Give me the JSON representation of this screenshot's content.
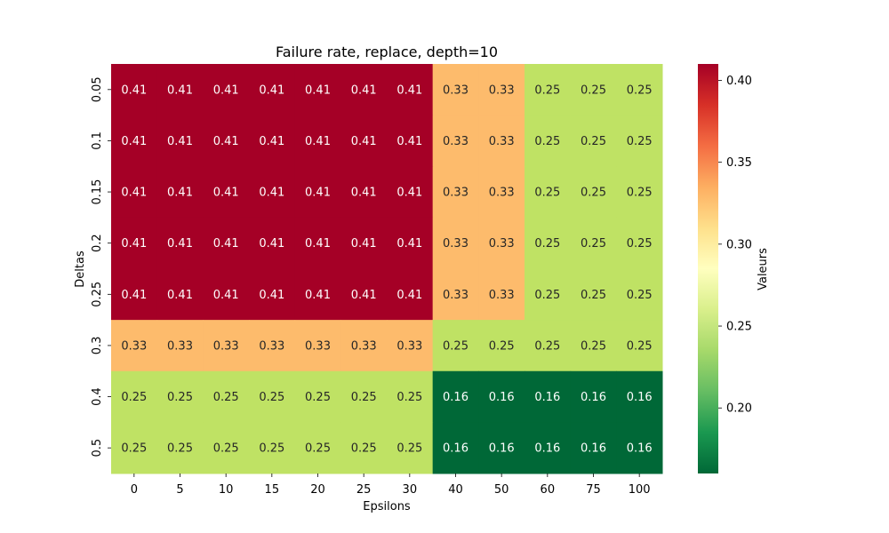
{
  "chart_data": {
    "type": "heatmap",
    "title": "Failure rate, replace, depth=10",
    "xlabel": "Epsilons",
    "ylabel": "Deltas",
    "x_categories": [
      "0",
      "5",
      "10",
      "15",
      "20",
      "25",
      "30",
      "40",
      "50",
      "60",
      "75",
      "100"
    ],
    "y_categories": [
      "0.05",
      "0.1",
      "0.15",
      "0.2",
      "0.25",
      "0.3",
      "0.4",
      "0.5"
    ],
    "values": [
      [
        0.41,
        0.41,
        0.41,
        0.41,
        0.41,
        0.41,
        0.41,
        0.33,
        0.33,
        0.25,
        0.25,
        0.25
      ],
      [
        0.41,
        0.41,
        0.41,
        0.41,
        0.41,
        0.41,
        0.41,
        0.33,
        0.33,
        0.25,
        0.25,
        0.25
      ],
      [
        0.41,
        0.41,
        0.41,
        0.41,
        0.41,
        0.41,
        0.41,
        0.33,
        0.33,
        0.25,
        0.25,
        0.25
      ],
      [
        0.41,
        0.41,
        0.41,
        0.41,
        0.41,
        0.41,
        0.41,
        0.33,
        0.33,
        0.25,
        0.25,
        0.25
      ],
      [
        0.41,
        0.41,
        0.41,
        0.41,
        0.41,
        0.41,
        0.41,
        0.33,
        0.33,
        0.25,
        0.25,
        0.25
      ],
      [
        0.33,
        0.33,
        0.33,
        0.33,
        0.33,
        0.33,
        0.33,
        0.25,
        0.25,
        0.25,
        0.25,
        0.25
      ],
      [
        0.25,
        0.25,
        0.25,
        0.25,
        0.25,
        0.25,
        0.25,
        0.16,
        0.16,
        0.16,
        0.16,
        0.16
      ],
      [
        0.25,
        0.25,
        0.25,
        0.25,
        0.25,
        0.25,
        0.25,
        0.16,
        0.16,
        0.16,
        0.16,
        0.16
      ]
    ],
    "value_format": "2 decimals",
    "colormap": "RdYlGn_r",
    "color_range": [
      0.16,
      0.41
    ],
    "colorbar": {
      "label": "Valeurs",
      "ticks": [
        "0.20",
        "0.25",
        "0.30",
        "0.35",
        "0.40"
      ]
    },
    "colors": {
      "0.16": "#006837",
      "0.25": "#bfe264",
      "0.33": "#fdbb6c",
      "0.41": "#a50026"
    },
    "grid": false
  }
}
